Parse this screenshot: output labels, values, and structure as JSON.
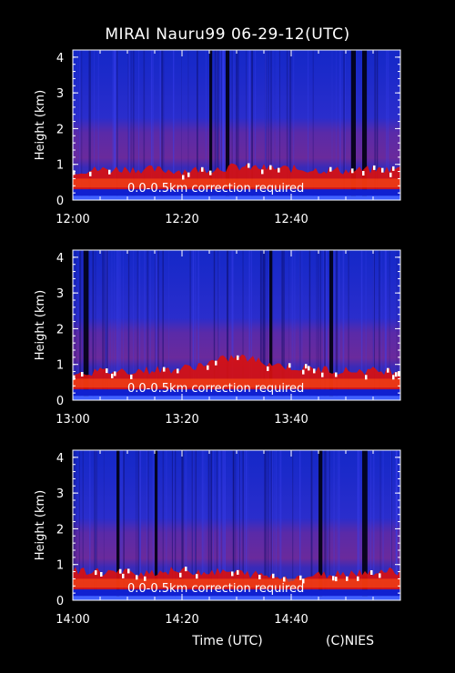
{
  "title": "MIRAI Nauru99 06-29-12(UTC)",
  "xlabel": "Time (UTC)",
  "credit": "(C)NIES",
  "colors": {
    "background": "#000000",
    "blue_high": "#1a2bd8",
    "purple_band": "#7a2a9a",
    "red_layer": "#e01010",
    "white_peak": "#ffffff",
    "surface_blue": "#2040ff"
  },
  "chart_data": [
    {
      "type": "heatmap",
      "ylabel": "Height (km)",
      "ylim": [
        0,
        4.2
      ],
      "yticks": [
        0,
        1,
        2,
        3,
        4
      ],
      "xlim": [
        "12:00",
        "13:00"
      ],
      "xtick_labels": [
        "12:00",
        "12:20",
        "12:40"
      ],
      "annotation": "0.0-0.5km correction required",
      "boundary_layer_top_km": [
        {
          "t": "12:00",
          "h": 0.8
        },
        {
          "t": "12:10",
          "h": 0.85
        },
        {
          "t": "12:20",
          "h": 0.8
        },
        {
          "t": "12:30",
          "h": 0.9
        },
        {
          "t": "12:40",
          "h": 0.85
        },
        {
          "t": "12:50",
          "h": 0.8
        },
        {
          "t": "13:00",
          "h": 0.85
        }
      ],
      "dark_gaps": [
        "12:25",
        "12:28",
        "12:51",
        "12:53"
      ]
    },
    {
      "type": "heatmap",
      "ylabel": "Height (km)",
      "ylim": [
        0,
        4.2
      ],
      "yticks": [
        0,
        1,
        2,
        3,
        4
      ],
      "xlim": [
        "13:00",
        "14:00"
      ],
      "xtick_labels": [
        "13:00",
        "13:20",
        "13:40"
      ],
      "annotation": "0.0-0.5km correction required",
      "boundary_layer_top_km": [
        {
          "t": "13:00",
          "h": 0.75
        },
        {
          "t": "13:10",
          "h": 0.8
        },
        {
          "t": "13:20",
          "h": 0.85
        },
        {
          "t": "13:30",
          "h": 1.2
        },
        {
          "t": "13:40",
          "h": 0.9
        },
        {
          "t": "13:50",
          "h": 0.8
        },
        {
          "t": "14:00",
          "h": 0.8
        }
      ],
      "dark_gaps": [
        "13:02",
        "13:36",
        "13:47"
      ]
    },
    {
      "type": "heatmap",
      "ylabel": "Height (km)",
      "ylim": [
        0,
        4.2
      ],
      "yticks": [
        0,
        1,
        2,
        3,
        4
      ],
      "xlim": [
        "14:00",
        "15:00"
      ],
      "xtick_labels": [
        "14:00",
        "14:20",
        "14:40"
      ],
      "annotation": "0.0-0.5km correction required",
      "boundary_layer_top_km": [
        {
          "t": "14:00",
          "h": 0.8
        },
        {
          "t": "14:10",
          "h": 0.75
        },
        {
          "t": "14:20",
          "h": 0.8
        },
        {
          "t": "14:30",
          "h": 0.75
        },
        {
          "t": "14:40",
          "h": 0.6
        },
        {
          "t": "14:50",
          "h": 0.75
        },
        {
          "t": "15:00",
          "h": 0.8
        }
      ],
      "dark_gaps": [
        "14:08",
        "14:15",
        "14:45",
        "14:53"
      ]
    }
  ]
}
